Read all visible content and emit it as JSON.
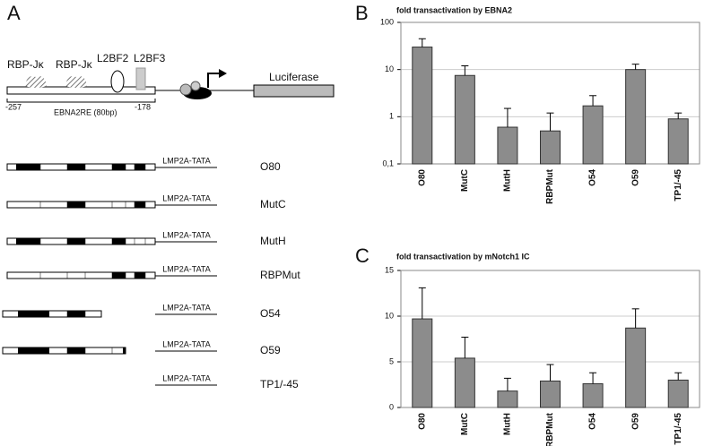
{
  "panels": {
    "a": "A",
    "b": "B",
    "c": "C"
  },
  "diagram": {
    "rbp1": "RBP-Jκ",
    "rbp2": "RBP-Jκ",
    "l2bf2": "L2BF2",
    "l2bf3": "L2BF3",
    "luciferase": "Luciferase",
    "start": "-257",
    "element": "EBNA2RE (80bp)",
    "end": "-178",
    "constructs": [
      {
        "name": "O80",
        "promoter": "LMP2A-TATA"
      },
      {
        "name": "MutC",
        "promoter": "LMP2A-TATA"
      },
      {
        "name": "MutH",
        "promoter": "LMP2A-TATA"
      },
      {
        "name": "RBPMut",
        "promoter": "LMP2A-TATA"
      },
      {
        "name": "O54",
        "promoter": "LMP2A-TATA"
      },
      {
        "name": "O59",
        "promoter": "LMP2A-TATA"
      },
      {
        "name": "TP1/-45",
        "promoter": "LMP2A-TATA"
      }
    ]
  },
  "chart_data": [
    {
      "type": "bar",
      "title": "fold transactivation by EBNA2",
      "log": true,
      "categories": [
        "O80",
        "MutC",
        "MutH",
        "RBPMut",
        "O54",
        "O59",
        "TP1/-45"
      ],
      "values": [
        30,
        7.5,
        0.6,
        0.5,
        1.7,
        10,
        0.9
      ],
      "errors": [
        15,
        4.5,
        0.9,
        0.7,
        1.1,
        3,
        0.3
      ],
      "color": "#8c8c8c",
      "ylim": [
        0.1,
        100
      ],
      "yticks": [
        {
          "value": 0.1,
          "label": "0,1"
        },
        1,
        10,
        100
      ],
      "grid": true
    },
    {
      "type": "bar",
      "title": "fold transactivation by mNotch1 IC",
      "log": false,
      "categories": [
        "O80",
        "MutC",
        "MutH",
        "RBPMut",
        "O54",
        "O59",
        "TP1/-45"
      ],
      "values": [
        9.7,
        5.4,
        1.8,
        2.9,
        2.6,
        8.7,
        3.0
      ],
      "errors": [
        3.4,
        2.3,
        1.4,
        1.8,
        1.2,
        2.1,
        0.8
      ],
      "color": "#8c8c8c",
      "ylim": [
        0,
        15
      ],
      "yticks": [
        0,
        5,
        10,
        15
      ],
      "grid": true
    }
  ]
}
